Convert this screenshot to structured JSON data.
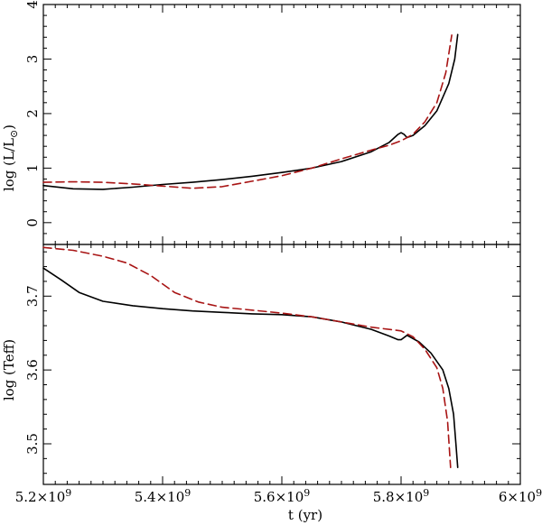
{
  "chart_data": {
    "type": "line",
    "xlabel": "t (yr)",
    "xlim": [
      5200000000.0,
      6000000000.0
    ],
    "x_ticks": [
      {
        "value": 5200000000.0,
        "mantissa": "5.2",
        "exp": "9"
      },
      {
        "value": 5400000000.0,
        "mantissa": "5.4",
        "exp": "9"
      },
      {
        "value": 5600000000.0,
        "mantissa": "5.6",
        "exp": "9"
      },
      {
        "value": 5800000000.0,
        "mantissa": "5.8",
        "exp": "9"
      },
      {
        "value": 6000000000.0,
        "mantissa": "6",
        "exp": "9"
      }
    ],
    "panels": [
      {
        "ylabel_text": "log  (L/L",
        "ylabel_sub": "⊙",
        "ylabel_close": ")",
        "ylim": [
          -0.4,
          4
        ],
        "y_ticks": [
          0,
          1,
          2,
          3,
          4
        ],
        "y_tick_labels": [
          "0",
          "1",
          "2",
          "3",
          "4"
        ],
        "series": [
          {
            "color": "#000000",
            "dash": "solid",
            "points": [
              [
                5200000000.0,
                0.68
              ],
              [
                5250000000.0,
                0.62
              ],
              [
                5300000000.0,
                0.61
              ],
              [
                5350000000.0,
                0.65
              ],
              [
                5400000000.0,
                0.7
              ],
              [
                5450000000.0,
                0.74
              ],
              [
                5500000000.0,
                0.79
              ],
              [
                5550000000.0,
                0.85
              ],
              [
                5600000000.0,
                0.92
              ],
              [
                5650000000.0,
                1.0
              ],
              [
                5700000000.0,
                1.12
              ],
              [
                5750000000.0,
                1.3
              ],
              [
                5780000000.0,
                1.47
              ],
              [
                5795000000.0,
                1.62
              ],
              [
                5800000000.0,
                1.65
              ],
              [
                5805000000.0,
                1.62
              ],
              [
                5810000000.0,
                1.56
              ],
              [
                5820000000.0,
                1.6
              ],
              [
                5840000000.0,
                1.78
              ],
              [
                5860000000.0,
                2.05
              ],
              [
                5880000000.0,
                2.55
              ],
              [
                5890000000.0,
                3.0
              ],
              [
                5895000000.0,
                3.45
              ]
            ]
          },
          {
            "color": "#a81414",
            "dash": "dashed",
            "points": [
              [
                5200000000.0,
                0.74
              ],
              [
                5250000000.0,
                0.75
              ],
              [
                5300000000.0,
                0.74
              ],
              [
                5350000000.0,
                0.71
              ],
              [
                5400000000.0,
                0.67
              ],
              [
                5450000000.0,
                0.63
              ],
              [
                5500000000.0,
                0.66
              ],
              [
                5550000000.0,
                0.76
              ],
              [
                5600000000.0,
                0.86
              ],
              [
                5650000000.0,
                1.0
              ],
              [
                5700000000.0,
                1.17
              ],
              [
                5750000000.0,
                1.33
              ],
              [
                5780000000.0,
                1.42
              ],
              [
                5800000000.0,
                1.5
              ],
              [
                5820000000.0,
                1.62
              ],
              [
                5840000000.0,
                1.85
              ],
              [
                5860000000.0,
                2.2
              ],
              [
                5875000000.0,
                2.75
              ],
              [
                5885000000.0,
                3.44
              ]
            ]
          }
        ]
      },
      {
        "ylabel_text": "log  (Teff)",
        "ylim": [
          3.445,
          3.77
        ],
        "y_ticks": [
          3.5,
          3.6,
          3.7
        ],
        "y_tick_labels": [
          "3.5",
          "3.6",
          "3.7"
        ],
        "series": [
          {
            "color": "#000000",
            "dash": "solid",
            "points": [
              [
                5200000000.0,
                3.738
              ],
              [
                5230000000.0,
                3.722
              ],
              [
                5260000000.0,
                3.705
              ],
              [
                5300000000.0,
                3.693
              ],
              [
                5350000000.0,
                3.687
              ],
              [
                5400000000.0,
                3.683
              ],
              [
                5450000000.0,
                3.68
              ],
              [
                5500000000.0,
                3.678
              ],
              [
                5550000000.0,
                3.676
              ],
              [
                5600000000.0,
                3.675
              ],
              [
                5650000000.0,
                3.672
              ],
              [
                5700000000.0,
                3.665
              ],
              [
                5750000000.0,
                3.655
              ],
              [
                5780000000.0,
                3.646
              ],
              [
                5795000000.0,
                3.641
              ],
              [
                5800000000.0,
                3.641
              ],
              [
                5810000000.0,
                3.647
              ],
              [
                5830000000.0,
                3.638
              ],
              [
                5850000000.0,
                3.623
              ],
              [
                5870000000.0,
                3.6
              ],
              [
                5880000000.0,
                3.575
              ],
              [
                5888000000.0,
                3.54
              ],
              [
                5892000000.0,
                3.5
              ],
              [
                5895000000.0,
                3.468
              ]
            ]
          },
          {
            "color": "#a81414",
            "dash": "dashed",
            "points": [
              [
                5200000000.0,
                3.766
              ],
              [
                5250000000.0,
                3.762
              ],
              [
                5300000000.0,
                3.754
              ],
              [
                5340000000.0,
                3.745
              ],
              [
                5380000000.0,
                3.728
              ],
              [
                5420000000.0,
                3.705
              ],
              [
                5460000000.0,
                3.692
              ],
              [
                5500000000.0,
                3.685
              ],
              [
                5550000000.0,
                3.681
              ],
              [
                5600000000.0,
                3.677
              ],
              [
                5650000000.0,
                3.672
              ],
              [
                5700000000.0,
                3.665
              ],
              [
                5750000000.0,
                3.658
              ],
              [
                5800000000.0,
                3.653
              ],
              [
                5820000000.0,
                3.645
              ],
              [
                5840000000.0,
                3.628
              ],
              [
                5860000000.0,
                3.603
              ],
              [
                5870000000.0,
                3.575
              ],
              [
                5878000000.0,
                3.53
              ],
              [
                5883000000.0,
                3.468
              ]
            ]
          }
        ]
      }
    ]
  }
}
